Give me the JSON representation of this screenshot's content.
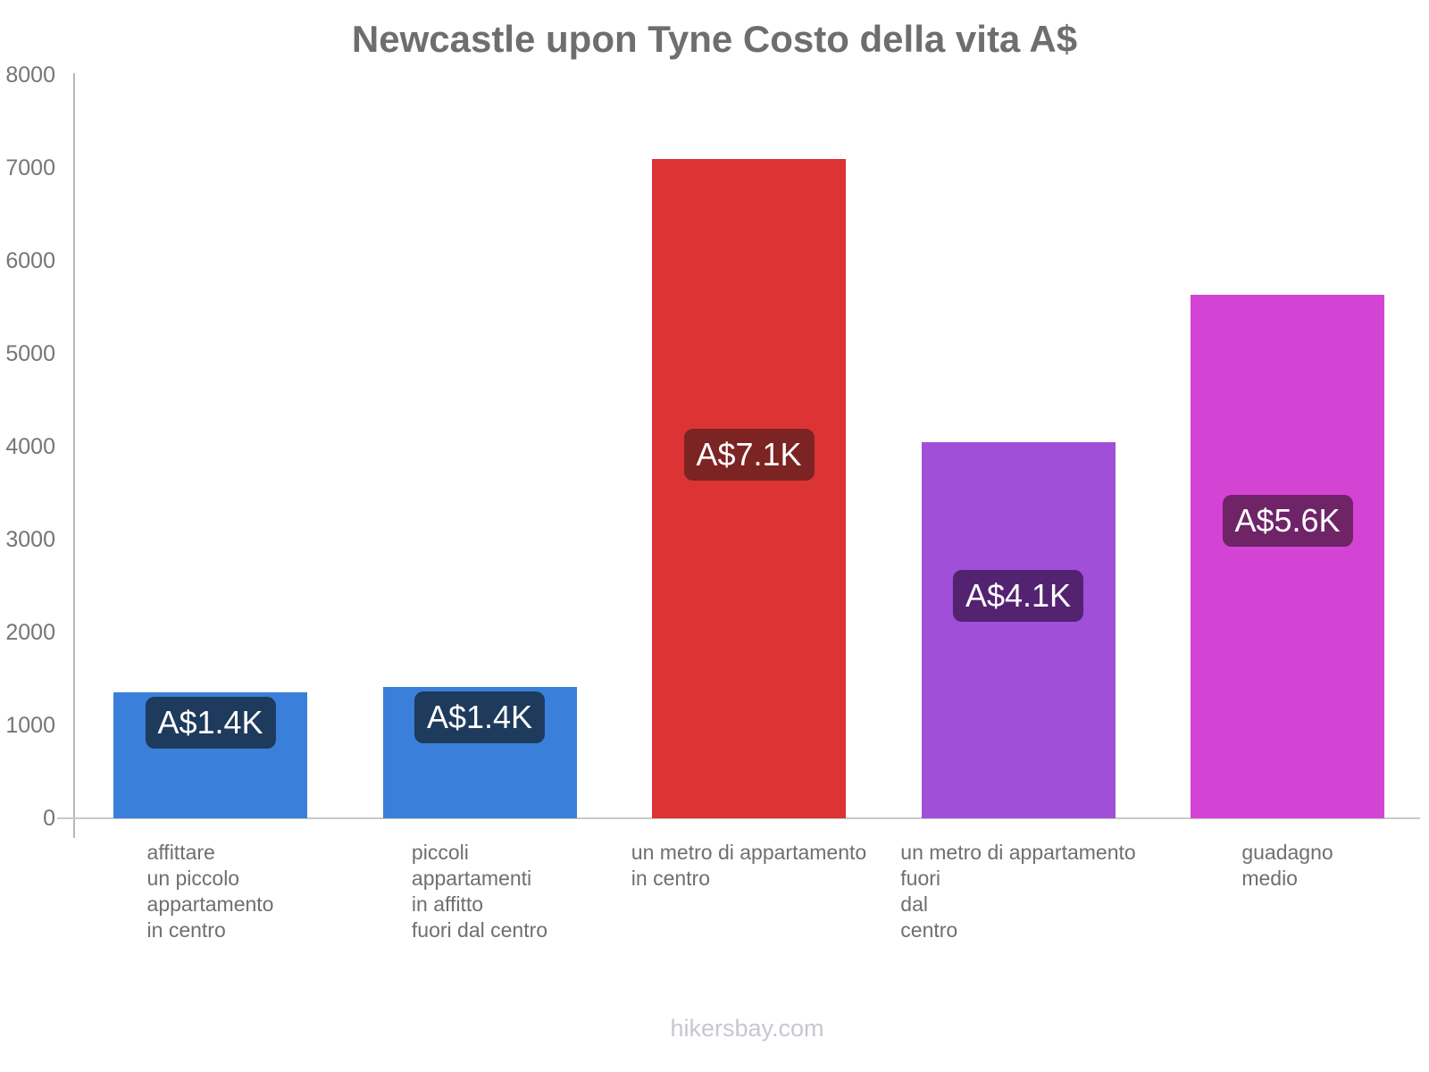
{
  "title": "Newcastle upon Tyne Costo della vita A$",
  "footer": "hikersbay.com",
  "colors": {
    "background": "#ffffff",
    "title_text": "#6e6e6e",
    "axis_line": "#b7b7b7",
    "baseline": "#c9c9c9",
    "tick_label": "#757575",
    "category_label": "#6f6f6f",
    "badge_text": "#ffffff",
    "footer_text": "#c5c8d1"
  },
  "chart_data": {
    "type": "bar",
    "title": "Newcastle upon Tyne Costo della vita A$",
    "currency": "A$",
    "xlabel": "",
    "ylabel": "",
    "ylim": [
      0,
      8000
    ],
    "yticks": [
      0,
      1000,
      2000,
      3000,
      4000,
      5000,
      6000,
      7000,
      8000
    ],
    "grid": false,
    "legend": false,
    "categories": [
      "affittare\nun piccolo\nappartamento\nin centro",
      "piccoli\nappartamenti\nin affitto\nfuori dal centro",
      "un metro di appartamento\nin centro",
      "un metro di appartamento\nfuori\ndal\ncentro",
      "guadagno\nmedio"
    ],
    "values": [
      1360,
      1410,
      7100,
      4050,
      5630
    ],
    "value_labels": [
      "A$1.4K",
      "A$1.4K",
      "A$7.1K",
      "A$4.1K",
      "A$5.6K"
    ],
    "bar_colors": [
      "#3a80da",
      "#3a80da",
      "#dc3434",
      "#a04fd8",
      "#d344d4"
    ],
    "badge_colors": [
      "#1e3a5c",
      "#1e3a5c",
      "#7c2323",
      "#532270",
      "#6f2468"
    ]
  }
}
